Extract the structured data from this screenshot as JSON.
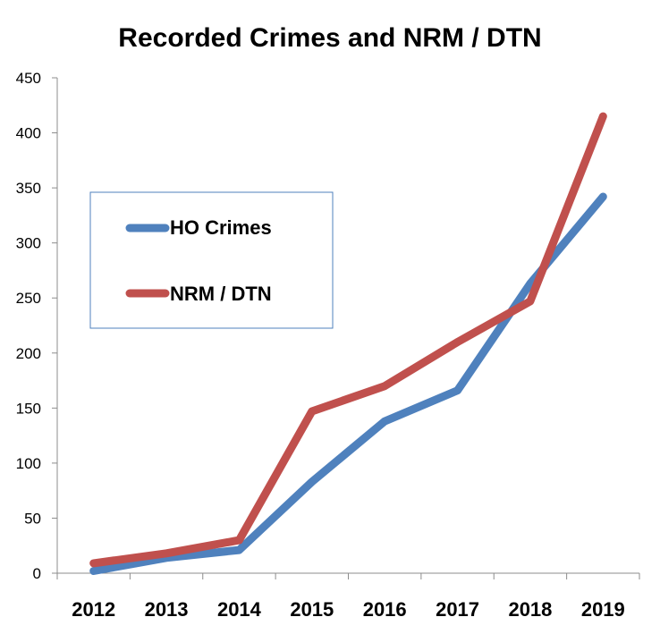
{
  "chart_data": {
    "type": "line",
    "title": "Recorded Crimes and NRM / DTN",
    "categories": [
      "2012",
      "2013",
      "2014",
      "2015",
      "2016",
      "2017",
      "2018",
      "2019"
    ],
    "ylim": [
      0,
      450
    ],
    "yticks": [
      0,
      50,
      100,
      150,
      200,
      250,
      300,
      350,
      400,
      450
    ],
    "grid": false,
    "legend_position": "upper-left",
    "series": [
      {
        "name": "HO Crimes",
        "color": "#4f81bd",
        "values": [
          2,
          14,
          21,
          83,
          138,
          166,
          263,
          342
        ]
      },
      {
        "name": "NRM / DTN",
        "color": "#c0504d",
        "values": [
          9,
          18,
          30,
          147,
          170,
          210,
          247,
          415
        ]
      }
    ]
  }
}
